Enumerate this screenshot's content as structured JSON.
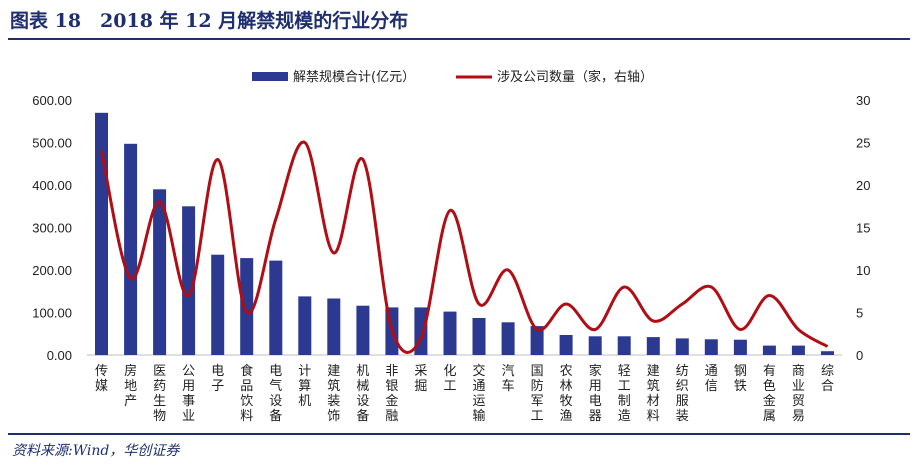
{
  "header": {
    "title": "图表 18　2018 年 12 月解禁规模的行业分布"
  },
  "footer": {
    "source": "资料来源:Wind，华创证券"
  },
  "chart_data": {
    "type": "bar+line",
    "title": "2018 年 12 月解禁规模的行业分布",
    "categories": [
      "传媒",
      "房地产",
      "医药生物",
      "公用事业",
      "电子",
      "食品饮料",
      "电气设备",
      "计算机",
      "建筑装饰",
      "机械设备",
      "非银金融",
      "采掘",
      "化工",
      "交通运输",
      "汽车",
      "国防军工",
      "农林牧渔",
      "家用电器",
      "轻工制造",
      "建筑材料",
      "纺织服装",
      "通信",
      "钢铁",
      "有色金属",
      "商业贸易",
      "综合"
    ],
    "series": [
      {
        "name": "解禁规模合计(亿元）",
        "type": "bar",
        "axis": "left",
        "color": "#2b3990",
        "values": [
          570,
          497,
          390,
          350,
          236,
          228,
          222,
          138,
          133,
          116,
          112,
          112,
          102,
          87,
          77,
          68,
          47,
          44,
          44,
          42,
          39,
          37,
          36,
          22,
          22,
          9
        ]
      },
      {
        "name": "涉及公司数量（家，右轴）",
        "type": "line",
        "axis": "right",
        "color": "#b00d14",
        "values": [
          24,
          9,
          18,
          7,
          23,
          5,
          16,
          25,
          12,
          23,
          3,
          2,
          17,
          6,
          10,
          3,
          6,
          3,
          8,
          4,
          6,
          8,
          3,
          7,
          3,
          1
        ]
      }
    ],
    "left_axis": {
      "ylim": [
        0,
        600
      ],
      "ticks": [
        "0.00",
        "100.00",
        "200.00",
        "300.00",
        "400.00",
        "500.00",
        "600.00"
      ]
    },
    "right_axis": {
      "ylim": [
        0,
        30
      ],
      "ticks": [
        "0",
        "5",
        "10",
        "15",
        "20",
        "25",
        "30"
      ]
    },
    "legend": {
      "position": "top-center"
    }
  }
}
